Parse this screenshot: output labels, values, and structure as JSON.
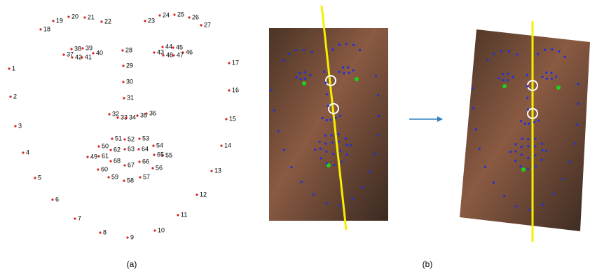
{
  "landmarks": [
    "1",
    "2",
    "3",
    "4",
    "5",
    "6",
    "7",
    "8",
    "9",
    "10",
    "11",
    "12",
    "13",
    "14",
    "15",
    "16",
    "17",
    "18",
    "19",
    "20",
    "21",
    "22",
    "23",
    "24",
    "25",
    "26",
    "27",
    "28",
    "29",
    "30",
    "31",
    "32",
    "33",
    "34",
    "35",
    "36",
    "37",
    "38",
    "39",
    "40",
    "41",
    "42",
    "43",
    "44",
    "45",
    "46",
    "47",
    "48",
    "49",
    "50",
    "51",
    "52",
    "53",
    "54",
    "55",
    "56",
    "57",
    "58",
    "59",
    "60",
    "61",
    "62",
    "63",
    "64",
    "65",
    "66",
    "67",
    "68"
  ],
  "captions": {
    "a": "(a)",
    "b": "(b)"
  }
}
